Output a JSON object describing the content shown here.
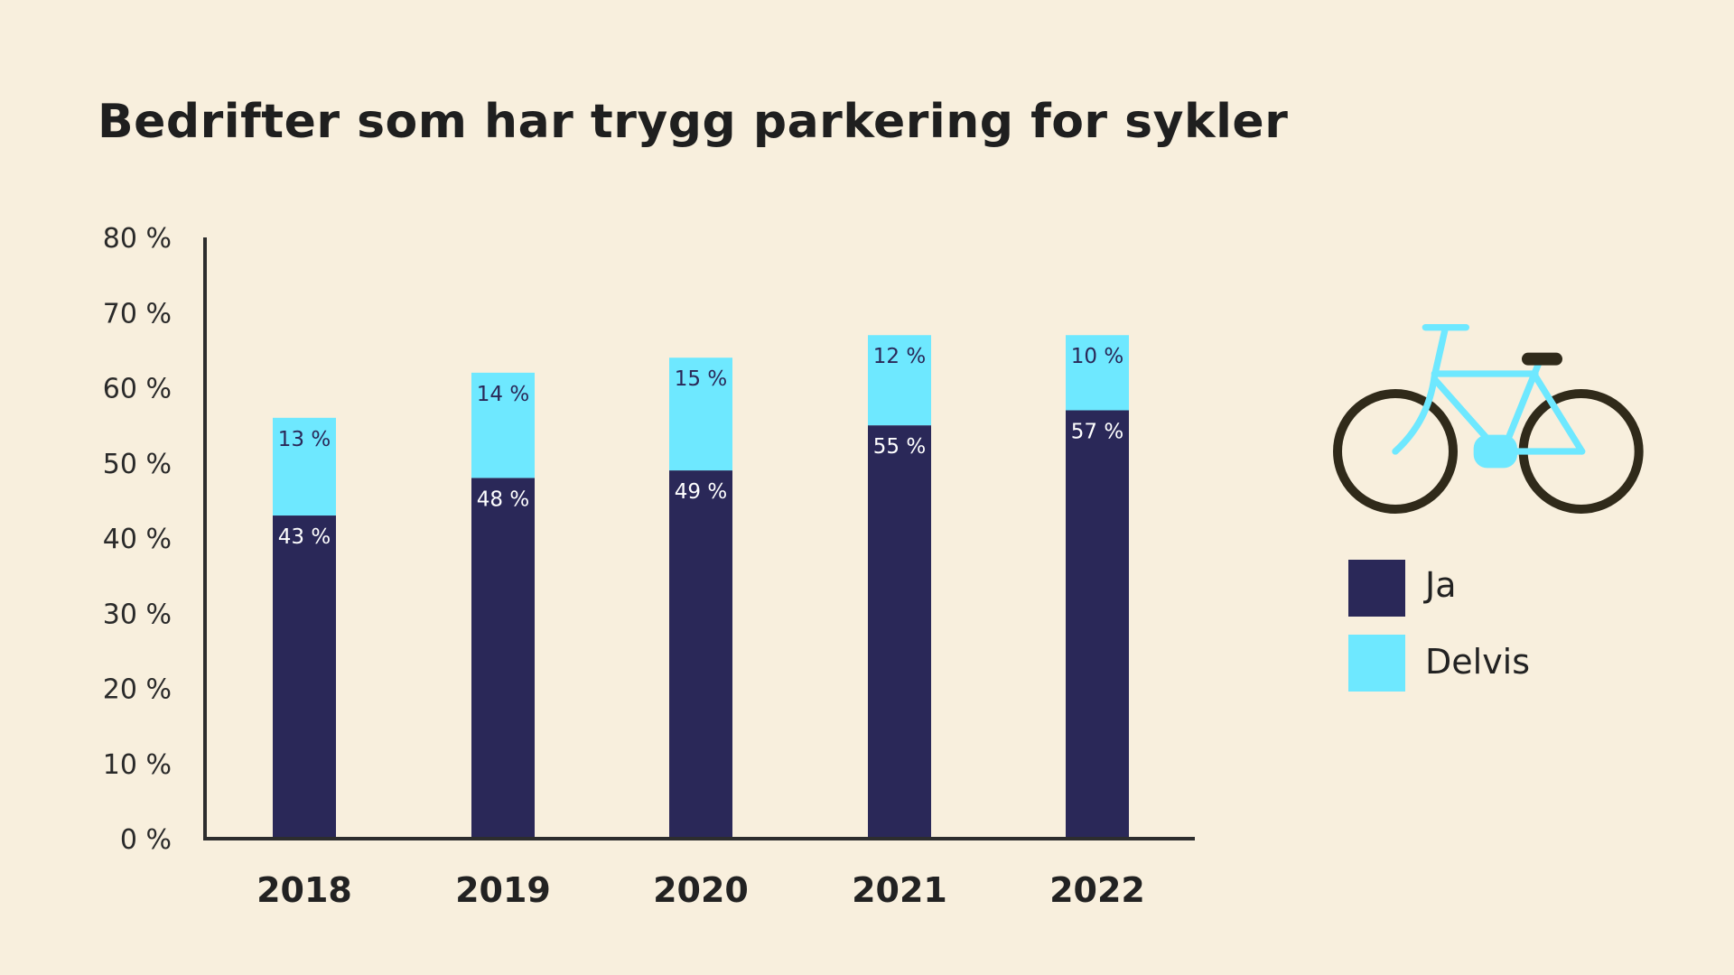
{
  "title": "Bedrifter som har trygg parkering for sykler",
  "chart_data": {
    "type": "bar",
    "stacked": true,
    "title": "Bedrifter som har trygg parkering for sykler",
    "categories": [
      "2018",
      "2019",
      "2020",
      "2021",
      "2022"
    ],
    "series": [
      {
        "name": "Ja",
        "values": [
          43,
          48,
          49,
          55,
          57
        ],
        "color": "#2a2858",
        "labels": [
          "43 %",
          "48 %",
          "49 %",
          "55 %",
          "57 %"
        ]
      },
      {
        "name": "Delvis",
        "values": [
          13,
          14,
          15,
          12,
          10
        ],
        "color": "#6ee8ff",
        "labels": [
          "13 %",
          "14 %",
          "15 %",
          "12 %",
          "10 %"
        ]
      }
    ],
    "ylim": [
      0,
      80
    ],
    "yticks": [
      0,
      10,
      20,
      30,
      40,
      50,
      60,
      70,
      80
    ],
    "ytick_labels": [
      "0 %",
      "10 %",
      "20 %",
      "30 %",
      "40 %",
      "50 %",
      "60 %",
      "70 %",
      "80 %"
    ],
    "xlabel": "",
    "ylabel": "",
    "grid": false,
    "legend": {
      "placement": "right",
      "entries": [
        "Ja",
        "Delvis"
      ]
    }
  },
  "icon": "bicycle-icon"
}
